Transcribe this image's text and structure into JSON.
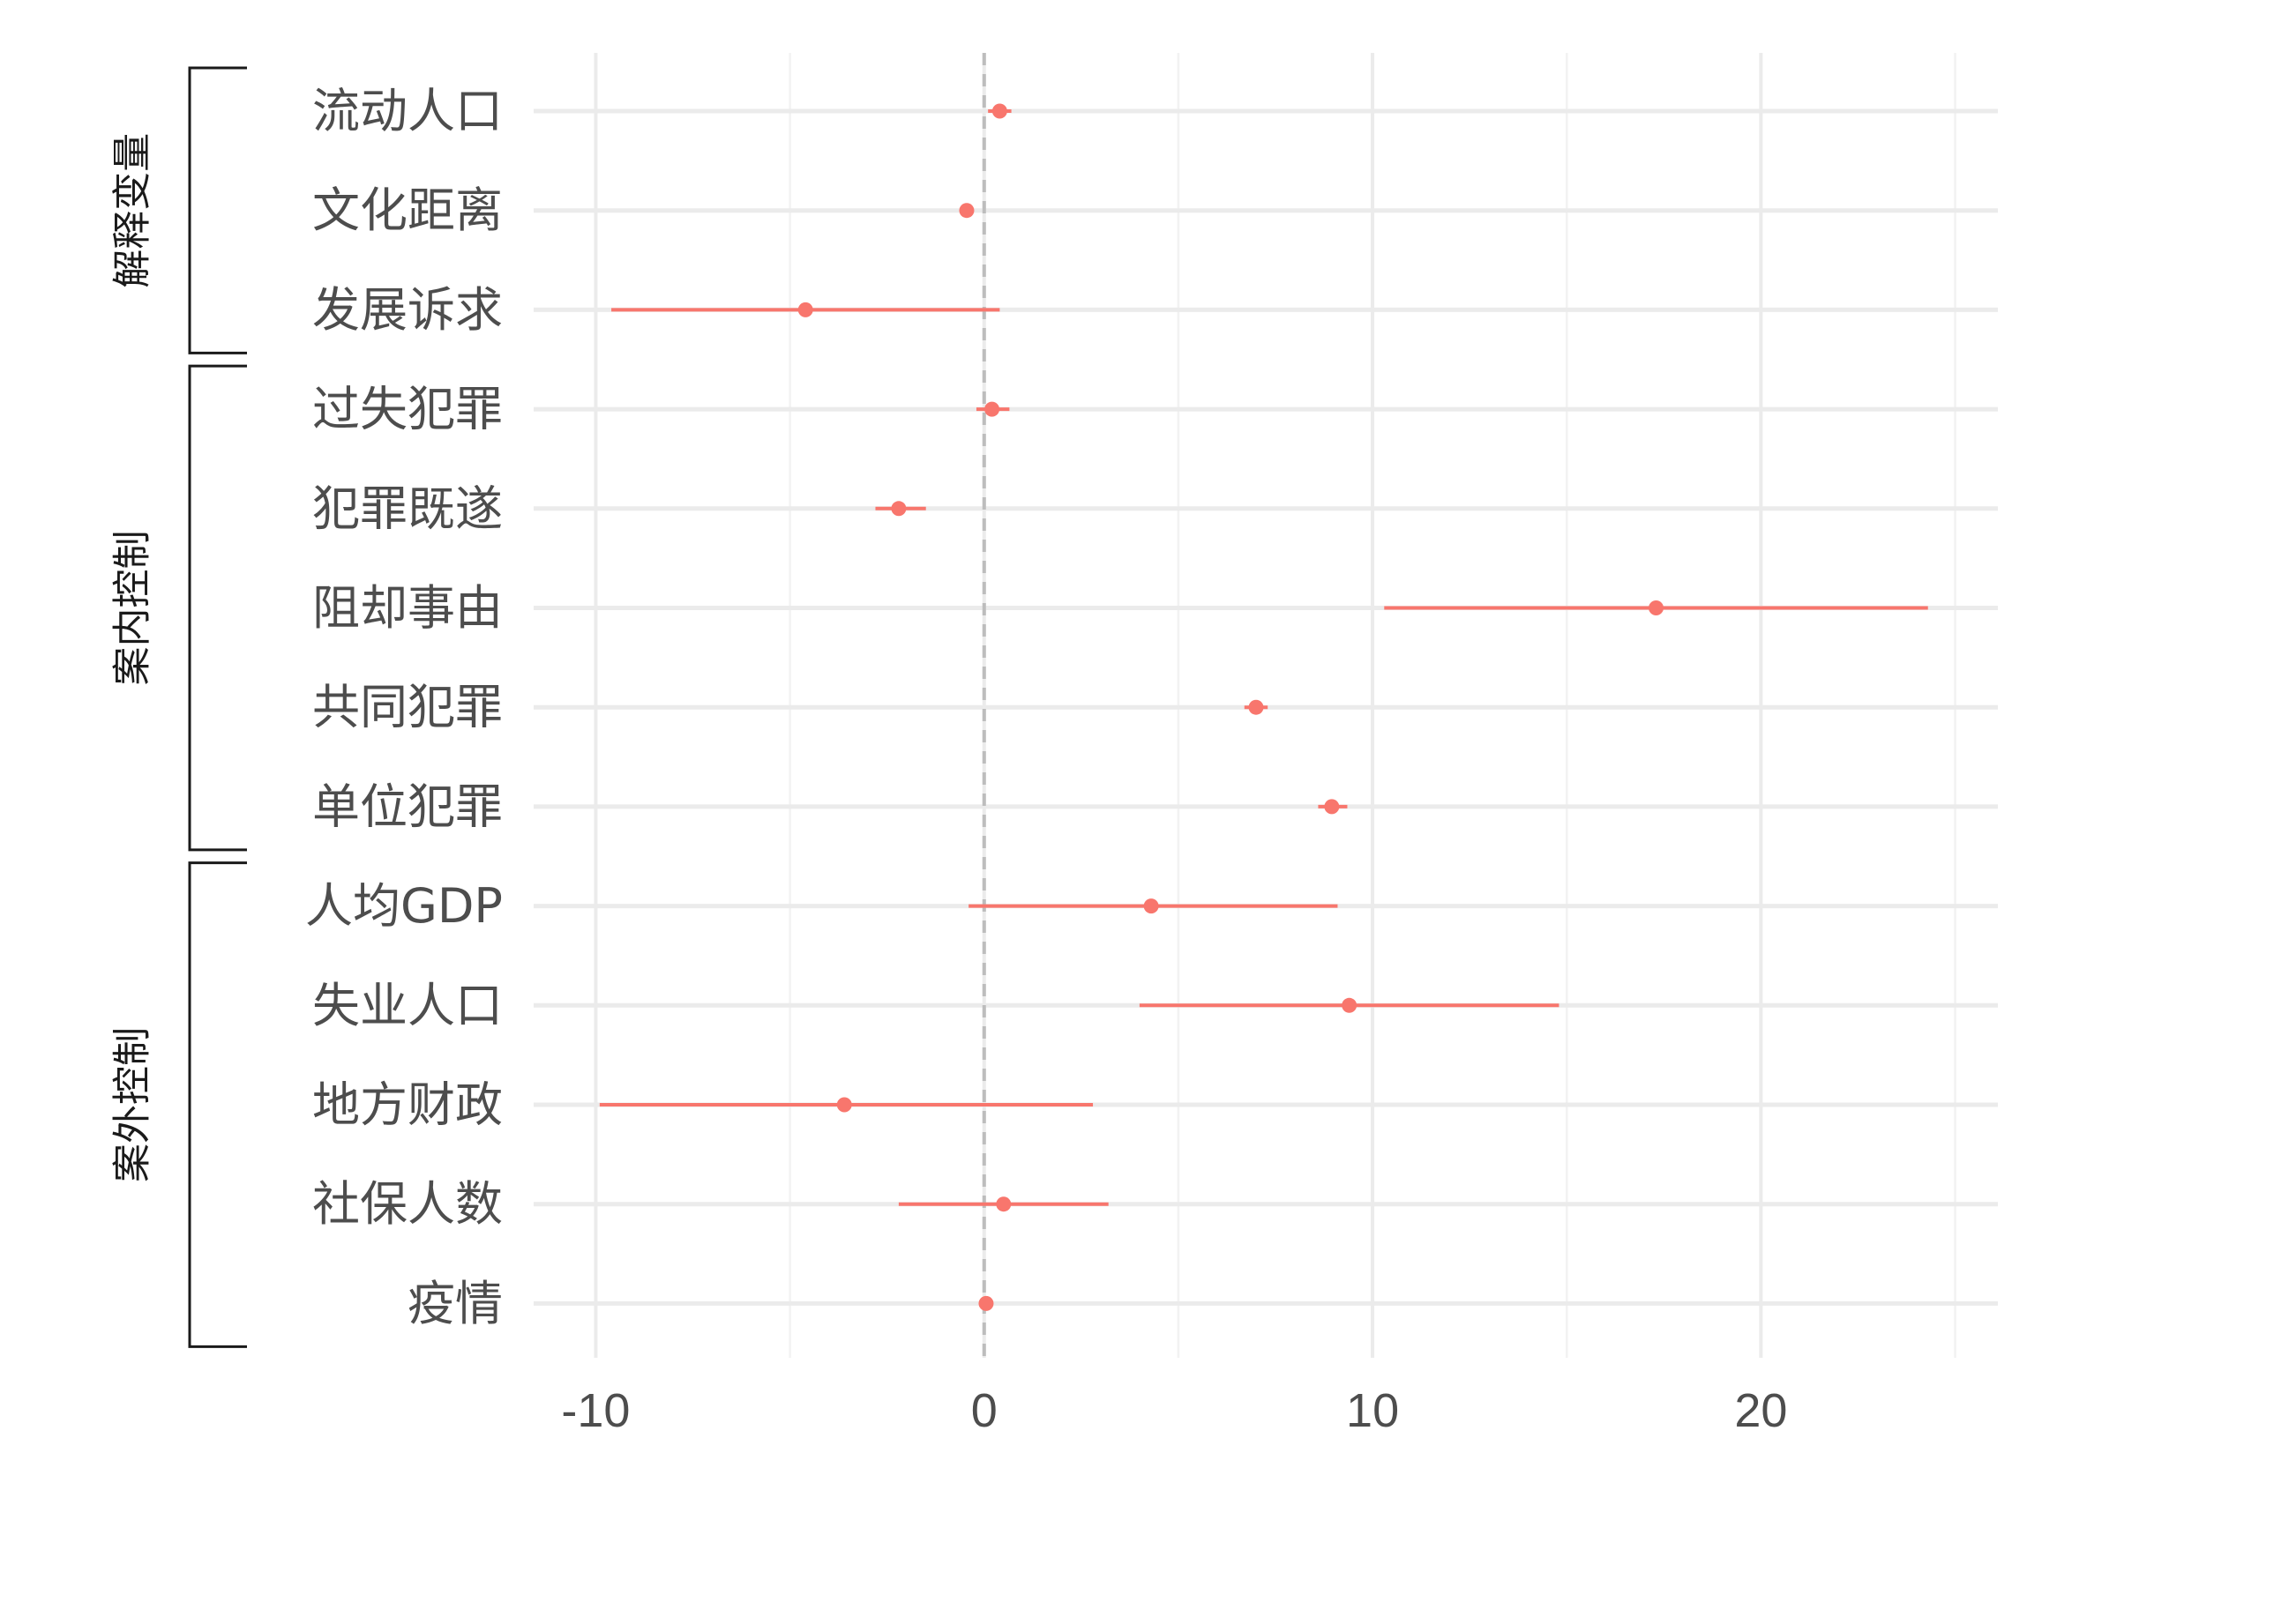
{
  "chart_data": {
    "type": "scatter",
    "title": "",
    "xlabel": "",
    "ylabel": "",
    "xlim": [
      -11.6,
      26.1
    ],
    "x_ticks": [
      -10,
      0,
      10,
      20
    ],
    "x_tick_labels": [
      "-10",
      "0",
      "10",
      "20"
    ],
    "grid": true,
    "reference_line_x": 0,
    "point_color": "#F8766D",
    "groups": [
      {
        "label": "解释变量",
        "first": 0,
        "last": 2
      },
      {
        "label": "案内控制",
        "first": 3,
        "last": 7
      },
      {
        "label": "案外控制",
        "first": 8,
        "last": 12
      }
    ],
    "series": [
      {
        "points": [
          {
            "label": "流动人口",
            "estimate": 0.4,
            "low": 0.1,
            "high": 0.7
          },
          {
            "label": "文化距离",
            "estimate": -0.45,
            "low": -0.6,
            "high": -0.3
          },
          {
            "label": "发展诉求",
            "estimate": -4.6,
            "low": -9.6,
            "high": 0.4
          },
          {
            "label": "过失犯罪",
            "estimate": 0.2,
            "low": -0.2,
            "high": 0.65
          },
          {
            "label": "犯罪既遂",
            "estimate": -2.2,
            "low": -2.8,
            "high": -1.5
          },
          {
            "label": "阻却事由",
            "estimate": 17.3,
            "low": 10.3,
            "high": 24.3
          },
          {
            "label": "共同犯罪",
            "estimate": 7.0,
            "low": 6.7,
            "high": 7.3
          },
          {
            "label": "单位犯罪",
            "estimate": 8.95,
            "low": 8.6,
            "high": 9.35
          },
          {
            "label": "人均GDP",
            "estimate": 4.3,
            "low": -0.4,
            "high": 9.1
          },
          {
            "label": "失业人口",
            "estimate": 9.4,
            "low": 4.0,
            "high": 14.8
          },
          {
            "label": "地方财政",
            "estimate": -3.6,
            "low": -9.9,
            "high": 2.8
          },
          {
            "label": "社保人数",
            "estimate": 0.5,
            "low": -2.2,
            "high": 3.2
          },
          {
            "label": "疫情",
            "estimate": 0.05,
            "low": -0.05,
            "high": 0.15
          }
        ]
      }
    ]
  }
}
